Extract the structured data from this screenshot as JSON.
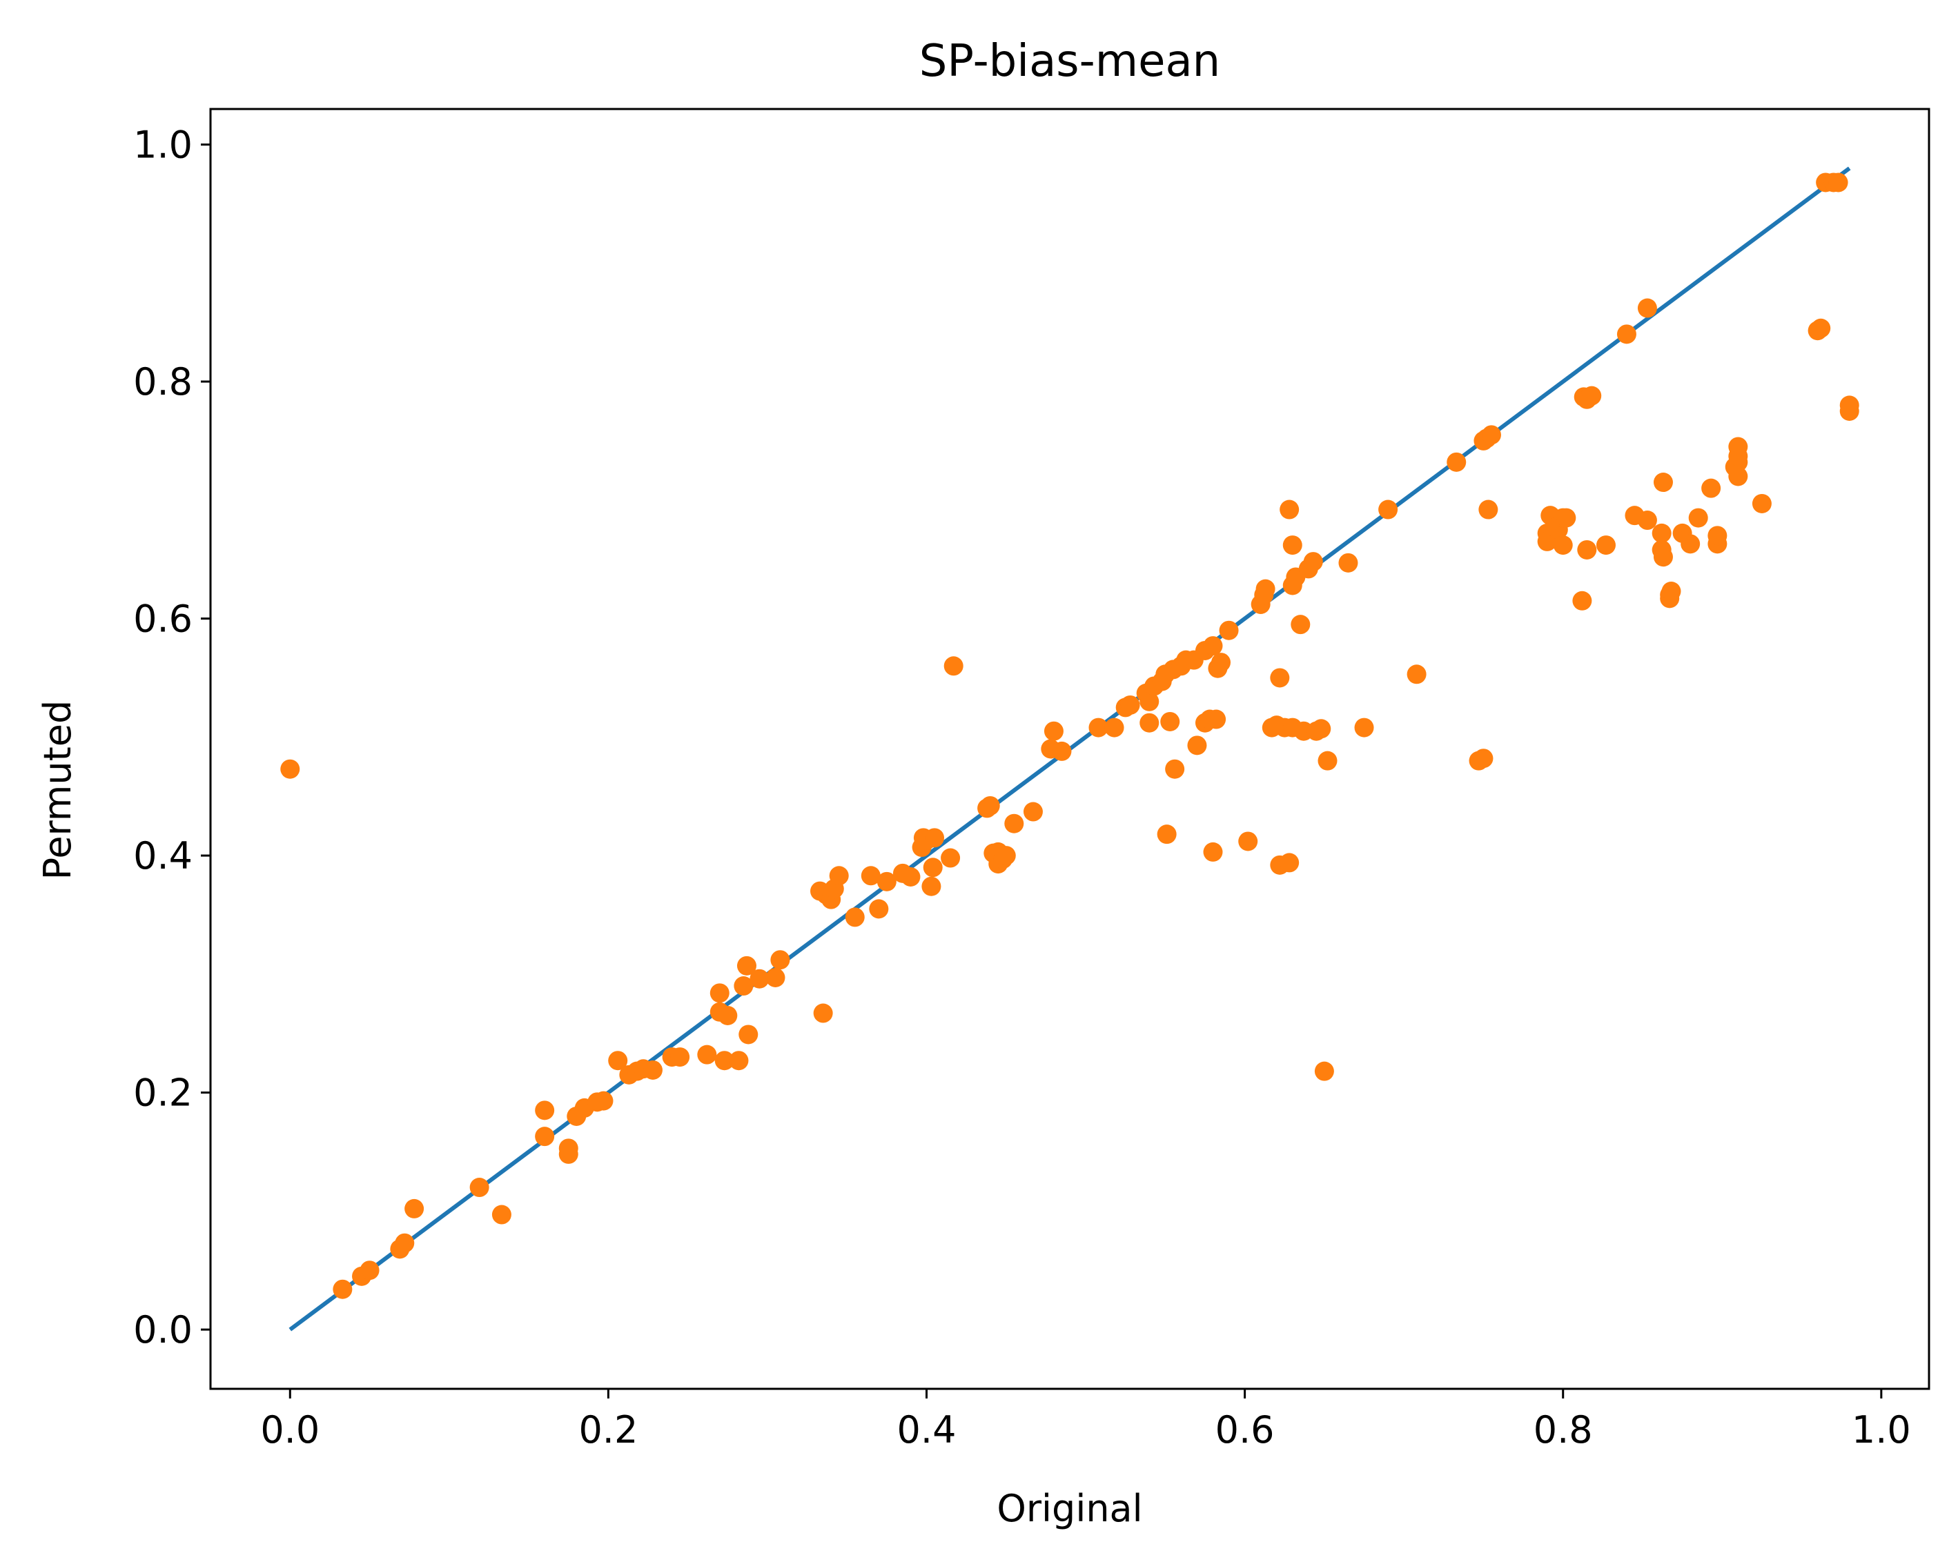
{
  "chart_data": {
    "type": "scatter",
    "title": "SP-bias-mean",
    "xlabel": "Original",
    "ylabel": "Permuted",
    "xlim": [
      -0.05,
      1.03
    ],
    "ylim": [
      -0.05,
      1.03
    ],
    "grid": false,
    "x_ticks": [
      "0.0",
      "0.2",
      "0.4",
      "0.6",
      "0.8",
      "1.0"
    ],
    "y_ticks": [
      "0.0",
      "0.2",
      "0.4",
      "0.6",
      "0.8",
      "1.0"
    ],
    "colors": {
      "line": "#1f77b4",
      "points": "#ff7f0e"
    },
    "series": [
      {
        "type": "line",
        "x": [
          0.0,
          0.98
        ],
        "y": [
          0.0,
          0.98
        ]
      },
      {
        "type": "scatter",
        "points": [
          [
            0.0,
            0.473
          ],
          [
            0.033,
            0.034
          ],
          [
            0.045,
            0.045
          ],
          [
            0.05,
            0.05
          ],
          [
            0.069,
            0.068
          ],
          [
            0.072,
            0.073
          ],
          [
            0.078,
            0.102
          ],
          [
            0.119,
            0.12
          ],
          [
            0.133,
            0.097
          ],
          [
            0.16,
            0.163
          ],
          [
            0.16,
            0.185
          ],
          [
            0.175,
            0.148
          ],
          [
            0.175,
            0.153
          ],
          [
            0.18,
            0.18
          ],
          [
            0.185,
            0.187
          ],
          [
            0.193,
            0.192
          ],
          [
            0.197,
            0.193
          ],
          [
            0.206,
            0.227
          ],
          [
            0.213,
            0.215
          ],
          [
            0.218,
            0.218
          ],
          [
            0.222,
            0.22
          ],
          [
            0.228,
            0.219
          ],
          [
            0.24,
            0.23
          ],
          [
            0.245,
            0.23
          ],
          [
            0.262,
            0.232
          ],
          [
            0.27,
            0.268
          ],
          [
            0.27,
            0.284
          ],
          [
            0.273,
            0.227
          ],
          [
            0.275,
            0.265
          ],
          [
            0.282,
            0.227
          ],
          [
            0.285,
            0.29
          ],
          [
            0.287,
            0.307
          ],
          [
            0.288,
            0.249
          ],
          [
            0.295,
            0.296
          ],
          [
            0.305,
            0.297
          ],
          [
            0.308,
            0.312
          ],
          [
            0.333,
            0.37
          ],
          [
            0.335,
            0.267
          ],
          [
            0.337,
            0.367
          ],
          [
            0.34,
            0.363
          ],
          [
            0.342,
            0.372
          ],
          [
            0.345,
            0.383
          ],
          [
            0.355,
            0.348
          ],
          [
            0.365,
            0.383
          ],
          [
            0.37,
            0.355
          ],
          [
            0.375,
            0.378
          ],
          [
            0.385,
            0.385
          ],
          [
            0.39,
            0.382
          ],
          [
            0.397,
            0.407
          ],
          [
            0.398,
            0.415
          ],
          [
            0.4,
            0.413
          ],
          [
            0.403,
            0.374
          ],
          [
            0.404,
            0.39
          ],
          [
            0.405,
            0.415
          ],
          [
            0.415,
            0.398
          ],
          [
            0.417,
            0.56
          ],
          [
            0.438,
            0.44
          ],
          [
            0.44,
            0.442
          ],
          [
            0.442,
            0.402
          ],
          [
            0.445,
            0.403
          ],
          [
            0.445,
            0.393
          ],
          [
            0.448,
            0.397
          ],
          [
            0.45,
            0.4
          ],
          [
            0.455,
            0.427
          ],
          [
            0.467,
            0.437
          ],
          [
            0.478,
            0.49
          ],
          [
            0.48,
            0.505
          ],
          [
            0.485,
            0.488
          ],
          [
            0.508,
            0.508
          ],
          [
            0.518,
            0.508
          ],
          [
            0.525,
            0.525
          ],
          [
            0.528,
            0.527
          ],
          [
            0.538,
            0.537
          ],
          [
            0.54,
            0.53
          ],
          [
            0.54,
            0.512
          ],
          [
            0.543,
            0.543
          ],
          [
            0.548,
            0.547
          ],
          [
            0.55,
            0.553
          ],
          [
            0.551,
            0.418
          ],
          [
            0.553,
            0.513
          ],
          [
            0.555,
            0.557
          ],
          [
            0.556,
            0.473
          ],
          [
            0.56,
            0.56
          ],
          [
            0.563,
            0.565
          ],
          [
            0.568,
            0.565
          ],
          [
            0.57,
            0.493
          ],
          [
            0.575,
            0.512
          ],
          [
            0.575,
            0.573
          ],
          [
            0.578,
            0.515
          ],
          [
            0.58,
            0.403
          ],
          [
            0.58,
            0.577
          ],
          [
            0.582,
            0.515
          ],
          [
            0.583,
            0.558
          ],
          [
            0.585,
            0.563
          ],
          [
            0.59,
            0.59
          ],
          [
            0.602,
            0.412
          ],
          [
            0.61,
            0.612
          ],
          [
            0.612,
            0.62
          ],
          [
            0.613,
            0.625
          ],
          [
            0.617,
            0.508
          ],
          [
            0.62,
            0.51
          ],
          [
            0.622,
            0.55
          ],
          [
            0.622,
            0.392
          ],
          [
            0.625,
            0.508
          ],
          [
            0.628,
            0.692
          ],
          [
            0.628,
            0.394
          ],
          [
            0.63,
            0.508
          ],
          [
            0.63,
            0.628
          ],
          [
            0.63,
            0.662
          ],
          [
            0.632,
            0.635
          ],
          [
            0.635,
            0.595
          ],
          [
            0.637,
            0.505
          ],
          [
            0.64,
            0.642
          ],
          [
            0.643,
            0.648
          ],
          [
            0.645,
            0.505
          ],
          [
            0.648,
            0.507
          ],
          [
            0.65,
            0.218
          ],
          [
            0.652,
            0.48
          ],
          [
            0.665,
            0.647
          ],
          [
            0.675,
            0.508
          ],
          [
            0.69,
            0.692
          ],
          [
            0.708,
            0.553
          ],
          [
            0.733,
            0.732
          ],
          [
            0.747,
            0.48
          ],
          [
            0.75,
            0.482
          ],
          [
            0.75,
            0.75
          ],
          [
            0.752,
            0.752
          ],
          [
            0.753,
            0.692
          ],
          [
            0.755,
            0.755
          ],
          [
            0.79,
            0.672
          ],
          [
            0.79,
            0.665
          ],
          [
            0.792,
            0.687
          ],
          [
            0.795,
            0.677
          ],
          [
            0.797,
            0.675
          ],
          [
            0.8,
            0.685
          ],
          [
            0.8,
            0.662
          ],
          [
            0.802,
            0.685
          ],
          [
            0.812,
            0.615
          ],
          [
            0.813,
            0.787
          ],
          [
            0.815,
            0.785
          ],
          [
            0.815,
            0.658
          ],
          [
            0.818,
            0.788
          ],
          [
            0.827,
            0.662
          ],
          [
            0.84,
            0.84
          ],
          [
            0.845,
            0.687
          ],
          [
            0.853,
            0.683
          ],
          [
            0.853,
            0.862
          ],
          [
            0.862,
            0.672
          ],
          [
            0.862,
            0.658
          ],
          [
            0.863,
            0.652
          ],
          [
            0.863,
            0.715
          ],
          [
            0.867,
            0.62
          ],
          [
            0.867,
            0.617
          ],
          [
            0.868,
            0.623
          ],
          [
            0.875,
            0.672
          ],
          [
            0.88,
            0.663
          ],
          [
            0.885,
            0.685
          ],
          [
            0.893,
            0.71
          ],
          [
            0.897,
            0.663
          ],
          [
            0.897,
            0.67
          ],
          [
            0.908,
            0.728
          ],
          [
            0.91,
            0.732
          ],
          [
            0.91,
            0.737
          ],
          [
            0.91,
            0.745
          ],
          [
            0.91,
            0.72
          ],
          [
            0.925,
            0.697
          ],
          [
            0.96,
            0.843
          ],
          [
            0.962,
            0.845
          ],
          [
            0.965,
            0.968
          ],
          [
            0.97,
            0.968
          ],
          [
            0.973,
            0.968
          ],
          [
            0.98,
            0.775
          ],
          [
            0.98,
            0.78
          ]
        ]
      }
    ]
  }
}
